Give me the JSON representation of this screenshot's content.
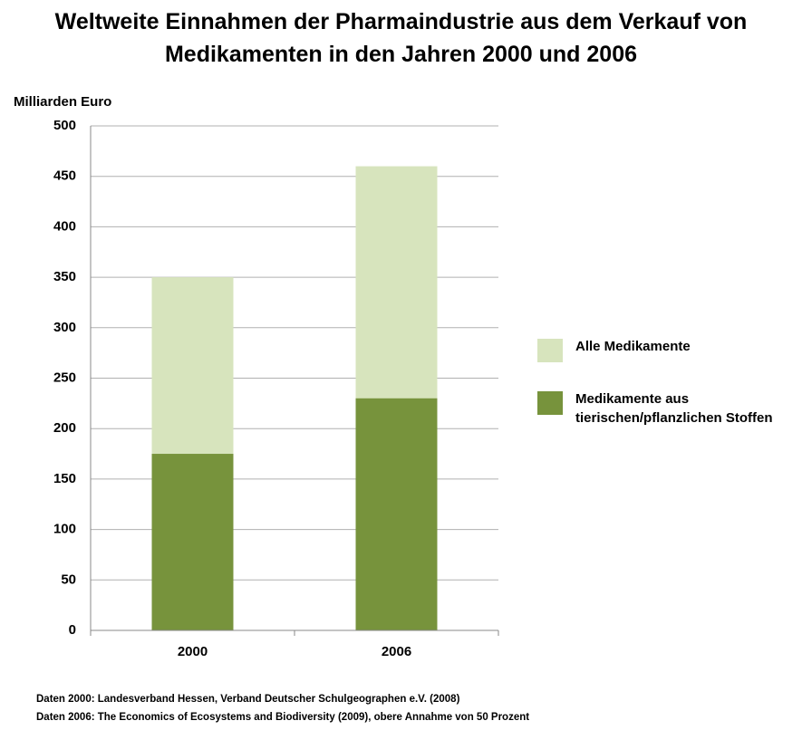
{
  "chart_data": {
    "type": "bar",
    "overlap": true,
    "title": "Weltweite Einnahmen der Pharmaindustrie aus dem Verkauf von Medikamenten in den Jahren 2000 und 2006",
    "y_axis_label": "Milliarden Euro",
    "categories": [
      "2000",
      "2006"
    ],
    "series": [
      {
        "name": "Alle Medikamente",
        "color": "#d7e4bd",
        "values": [
          350,
          460
        ]
      },
      {
        "name": "Medikamente aus tierischen/pflanzlichen Stoffen",
        "color": "#77933c",
        "values": [
          175,
          230
        ]
      }
    ],
    "ylim": [
      0,
      500
    ],
    "yticks": [
      0,
      50,
      100,
      150,
      200,
      250,
      300,
      350,
      400,
      450,
      500
    ],
    "grid": true,
    "legend": "right",
    "notes": [
      "Daten 2000: Landesverband Hessen, Verband Deutscher Schulgeographen e.V. (2008)",
      "Daten 2006: The Economics of Ecosystems and Biodiversity (2009), obere Annahme von 50 Prozent"
    ]
  }
}
